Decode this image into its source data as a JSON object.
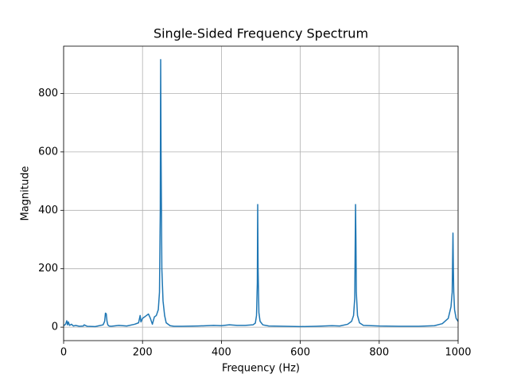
{
  "chart_data": {
    "type": "line",
    "title": "Single-Sided Frequency Spectrum",
    "x_label": "Frequency (Hz)",
    "y_label": "Magnitude",
    "x": [
      0,
      5,
      8,
      10,
      12,
      15,
      20,
      25,
      30,
      40,
      50,
      52,
      60,
      80,
      100,
      104,
      106,
      108,
      110,
      112,
      115,
      120,
      140,
      160,
      180,
      190,
      194,
      196,
      200,
      210,
      215,
      220,
      225,
      230,
      235,
      240,
      243,
      245,
      246,
      247,
      249,
      252,
      256,
      260,
      270,
      280,
      300,
      340,
      380,
      400,
      420,
      440,
      460,
      480,
      486,
      489,
      491,
      492,
      493,
      495,
      498,
      505,
      520,
      560,
      600,
      640,
      680,
      700,
      720,
      730,
      735,
      738,
      740,
      741,
      742,
      745,
      750,
      760,
      800,
      850,
      900,
      940,
      960,
      975,
      982,
      985,
      987,
      988,
      989,
      991,
      995,
      1000
    ],
    "series": [
      {
        "color": "#1f77b4",
        "values": [
          5,
          10,
          22,
          8,
          18,
          6,
          10,
          4,
          6,
          3,
          4,
          8,
          3,
          2,
          8,
          20,
          48,
          46,
          20,
          8,
          4,
          3,
          6,
          4,
          10,
          15,
          40,
          18,
          30,
          40,
          45,
          30,
          10,
          35,
          40,
          60,
          120,
          400,
          916,
          600,
          200,
          90,
          40,
          15,
          5,
          3,
          3,
          4,
          6,
          5,
          8,
          6,
          6,
          8,
          14,
          40,
          150,
          420,
          200,
          50,
          20,
          8,
          4,
          3,
          2,
          3,
          5,
          4,
          10,
          20,
          40,
          100,
          420,
          300,
          120,
          40,
          15,
          6,
          4,
          3,
          3,
          5,
          12,
          30,
          70,
          120,
          322,
          200,
          120,
          60,
          30,
          20
        ]
      }
    ],
    "xlim": [
      0,
      1000
    ],
    "ylim": [
      -46,
      962
    ],
    "xticks": [
      0,
      200,
      400,
      600,
      800,
      1000
    ],
    "yticks": [
      0,
      200,
      400,
      600,
      800
    ],
    "grid": true
  }
}
